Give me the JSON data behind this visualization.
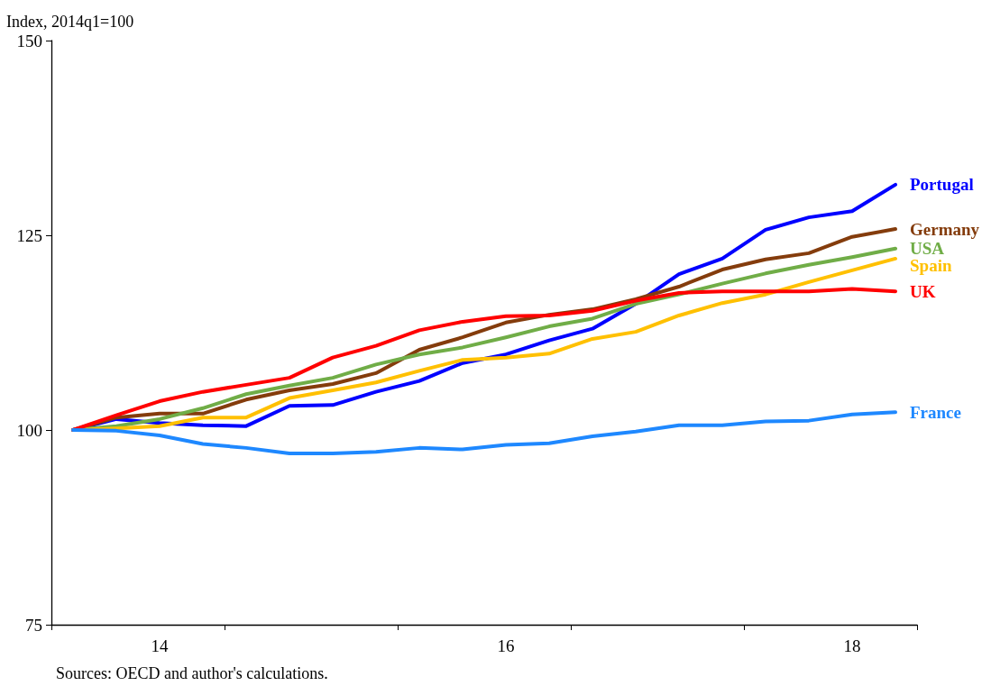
{
  "chart_data": {
    "type": "line",
    "ylabel": "Index, 2014q1=100",
    "categories": [
      null,
      null,
      "14",
      null,
      null,
      null,
      null,
      null,
      null,
      null,
      "16",
      null,
      null,
      null,
      null,
      null,
      null,
      null,
      "18",
      null
    ],
    "series": [
      {
        "name": "Portugal",
        "color": "#0000ff",
        "values": [
          100,
          101.4,
          100.9,
          100.6,
          100.5,
          103.1,
          103.2,
          104.9,
          106.3,
          108.6,
          109.7,
          111.5,
          113.0,
          116.2,
          120.0,
          122.0,
          125.7,
          127.3,
          128.1,
          131.5
        ]
      },
      {
        "name": "Germany",
        "color": "#843c0c",
        "values": [
          100,
          101.6,
          102.1,
          102.1,
          103.9,
          105.1,
          105.9,
          107.3,
          110.3,
          111.9,
          113.8,
          114.8,
          115.5,
          116.8,
          118.4,
          120.6,
          121.9,
          122.7,
          124.8,
          125.8
        ]
      },
      {
        "name": "USA",
        "color": "#70ad47",
        "values": [
          100,
          100.5,
          101.4,
          102.8,
          104.6,
          105.7,
          106.7,
          108.4,
          109.7,
          110.6,
          111.9,
          113.3,
          114.3,
          116.2,
          117.4,
          118.8,
          120.1,
          121.2,
          122.2,
          123.3
        ]
      },
      {
        "name": "Spain",
        "color": "#ffc000",
        "values": [
          100,
          100.2,
          100.5,
          101.6,
          101.6,
          104.1,
          105.1,
          106.1,
          107.6,
          109.0,
          109.3,
          109.8,
          111.7,
          112.6,
          114.7,
          116.3,
          117.4,
          119.0,
          120.5,
          122.0
        ]
      },
      {
        "name": "UK",
        "color": "#ff0000",
        "values": [
          100,
          101.9,
          103.7,
          104.9,
          105.8,
          106.7,
          109.3,
          110.8,
          112.8,
          113.9,
          114.6,
          114.7,
          115.3,
          116.6,
          117.6,
          117.8,
          117.8,
          117.8,
          118.1,
          117.8
        ]
      },
      {
        "name": "France",
        "color": "#1e88ff",
        "values": [
          100,
          99.9,
          99.3,
          98.2,
          97.7,
          97.0,
          97.0,
          97.2,
          97.7,
          97.5,
          98.1,
          98.3,
          99.2,
          99.8,
          100.6,
          100.6,
          101.1,
          101.2,
          102.0,
          102.3
        ]
      }
    ],
    "ylim": [
      75,
      150
    ],
    "yticks": [
      75,
      100,
      125,
      150
    ],
    "grid": false,
    "legend": false,
    "marker": "none",
    "line_style": "solid",
    "annotations": [
      "Sources: OECD and author's calculations."
    ]
  }
}
